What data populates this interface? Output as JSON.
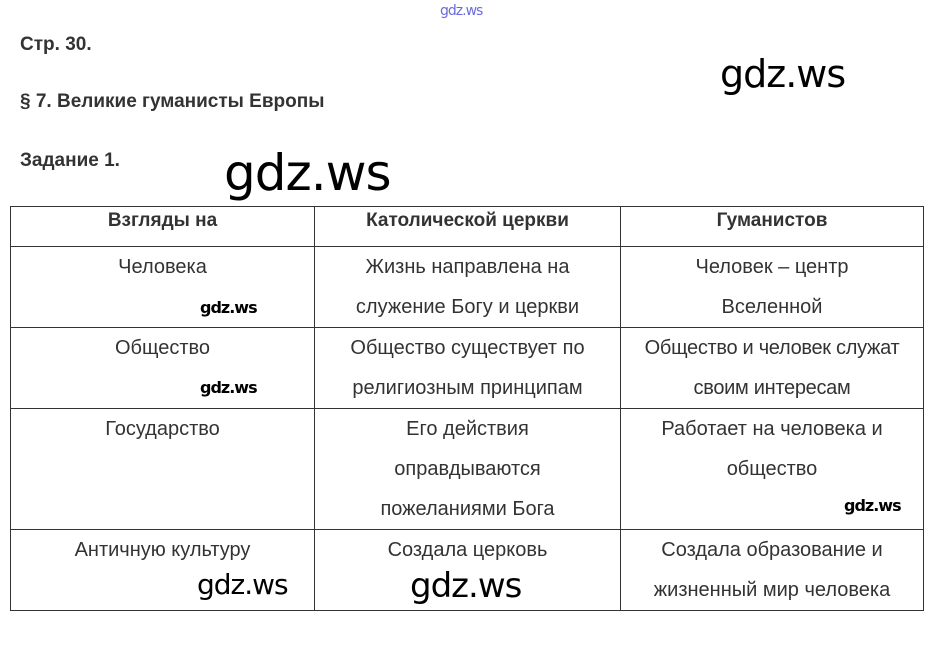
{
  "header": {
    "page": "Стр. 30.",
    "section": "§ 7. Великие гуманисты Европы",
    "task": "Задание 1."
  },
  "table": {
    "columns": [
      "Взгляды на",
      "Католической церкви",
      "Гуманистов"
    ],
    "rows": [
      [
        "Человека",
        "Жизнь направлена на служение Богу и церкви",
        "Человек – центр Вселенной"
      ],
      [
        "Общество",
        "Общество существует по религиозным принципам",
        "Общество и человек служат своим интересам"
      ],
      [
        "Государство",
        "Его действия оправдываются пожеланиями Бога",
        "Работает на человека и общество"
      ],
      [
        "Античную культуру",
        "Создала церковь",
        "Создала образование и жизненный мир человека"
      ]
    ]
  },
  "watermarks": [
    "gdz.ws",
    "gdz.ws",
    "gdz.ws",
    "gdz.ws",
    "gdz.ws",
    "gdz.ws",
    "gdz.ws",
    "gdz.ws"
  ],
  "colors": {
    "top_watermark": "#6a6ae0",
    "text": "#333333"
  }
}
